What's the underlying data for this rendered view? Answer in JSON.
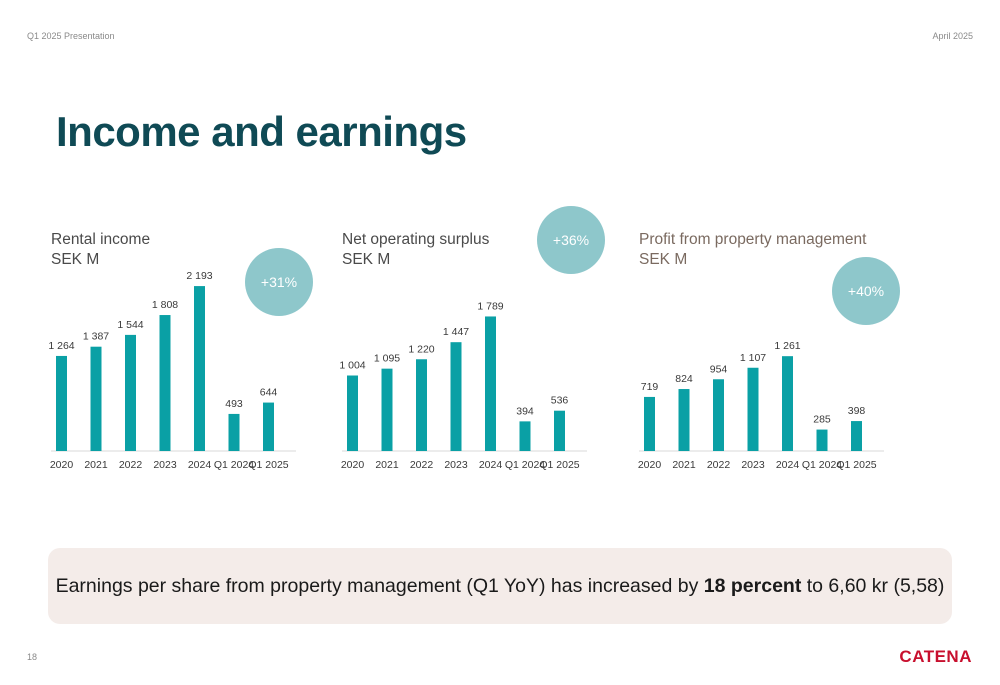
{
  "header": {
    "left": "Q1 2025 Presentation",
    "right": "April 2025"
  },
  "page_title": "Income and earnings",
  "colors": {
    "bar": "#0aa0a5",
    "badge": "#8ec7cb",
    "title": "#0f4a55",
    "logo": "#c8102e"
  },
  "chart_data": [
    {
      "type": "bar",
      "title": "Rental income",
      "subtitle": "SEK M",
      "categories": [
        "2020",
        "2021",
        "2022",
        "2023",
        "2024",
        "Q1 2024",
        "Q1 2025"
      ],
      "values": [
        1264,
        1387,
        1544,
        1808,
        2193,
        493,
        644
      ],
      "data_labels": [
        "1 264",
        "1 387",
        "1 544",
        "1 808",
        "2 193",
        "493",
        "644"
      ],
      "badge": "+31%"
    },
    {
      "type": "bar",
      "title": "Net operating surplus",
      "subtitle": "SEK M",
      "categories": [
        "2020",
        "2021",
        "2022",
        "2023",
        "2024",
        "Q1 2024",
        "Q1 2025"
      ],
      "values": [
        1004,
        1095,
        1220,
        1447,
        1789,
        394,
        536
      ],
      "data_labels": [
        "1 004",
        "1 095",
        "1 220",
        "1 447",
        "1 789",
        "394",
        "536"
      ],
      "badge": "+36%"
    },
    {
      "type": "bar",
      "title": "Profit from property management",
      "subtitle": "SEK M",
      "categories": [
        "2020",
        "2021",
        "2022",
        "2023",
        "2024",
        "Q1 2024",
        "Q1 2025"
      ],
      "values": [
        719,
        824,
        954,
        1107,
        1261,
        285,
        398
      ],
      "data_labels": [
        "719",
        "824",
        "954",
        "1 107",
        "1 261",
        "285",
        "398"
      ],
      "badge": "+40%"
    }
  ],
  "banner": {
    "before": "Earnings per share from property management (Q1 YoY) has increased by ",
    "bold": "18 percent",
    "after": " to 6,60 kr (5,58)"
  },
  "page_number": "18",
  "logo": "CATENA"
}
